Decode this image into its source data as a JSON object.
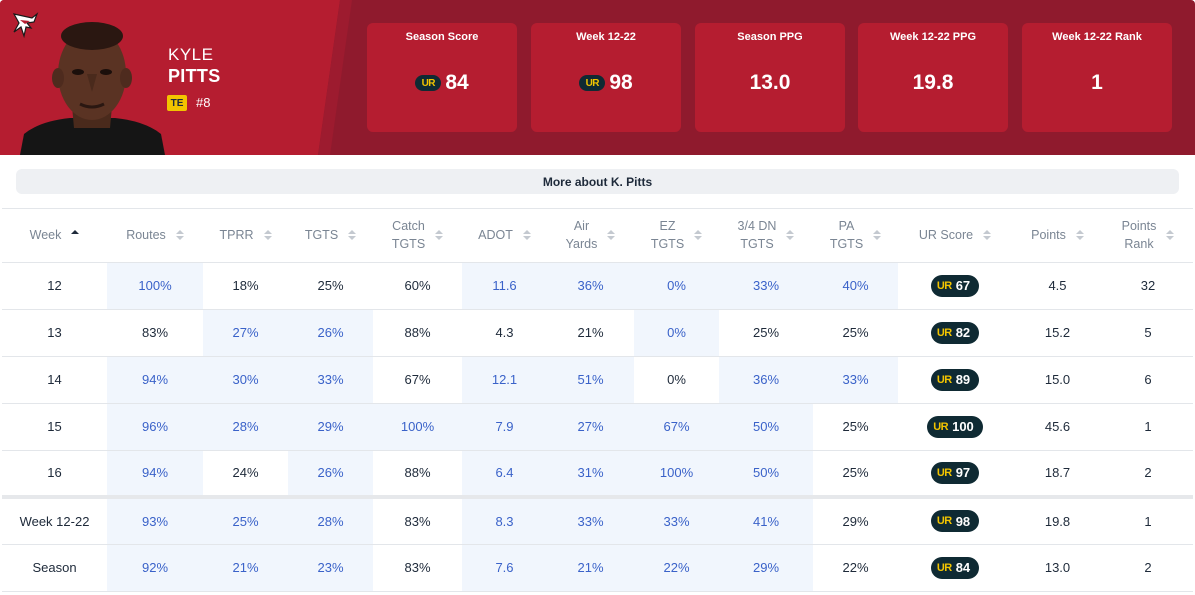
{
  "player": {
    "first_name": "KYLE",
    "last_name": "PITTS",
    "position": "TE",
    "jersey": "#8",
    "team_logo_icon": "falcons-logo-icon"
  },
  "colors": {
    "team_primary": "#b51d30",
    "team_dark": "#8f1a2d",
    "ur_chip_bg": "#0f2a33",
    "ur_chip_mark": "#f2c400",
    "highlight_cell_bg": "#f1f6fd",
    "highlight_cell_text": "#3a62c9"
  },
  "stats": [
    {
      "label": "Season Score",
      "value": "84",
      "ur_chip": "UR"
    },
    {
      "label": "Week 12-22",
      "value": "98",
      "ur_chip": "UR"
    },
    {
      "label": "Season PPG",
      "value": "13.0"
    },
    {
      "label": "Week 12-22 PPG",
      "value": "19.8"
    },
    {
      "label": "Week 12-22 Rank",
      "value": "1"
    }
  ],
  "more_about": "More about K. Pitts",
  "table": {
    "columns": [
      {
        "l1": "Week",
        "l2": ""
      },
      {
        "l1": "Routes",
        "l2": ""
      },
      {
        "l1": "TPRR",
        "l2": ""
      },
      {
        "l1": "TGTS",
        "l2": ""
      },
      {
        "l1": "Catch",
        "l2": "TGTS"
      },
      {
        "l1": "ADOT",
        "l2": ""
      },
      {
        "l1": "Air",
        "l2": "Yards"
      },
      {
        "l1": "EZ",
        "l2": "TGTS"
      },
      {
        "l1": "3/4 DN",
        "l2": "TGTS"
      },
      {
        "l1": "PA",
        "l2": "TGTS"
      },
      {
        "l1": "UR Score",
        "l2": ""
      },
      {
        "l1": "Points",
        "l2": ""
      },
      {
        "l1": "Points",
        "l2": "Rank"
      }
    ],
    "sorted_column": "Week",
    "ur_mark": "UR",
    "rows": [
      {
        "cells": [
          "12",
          "100%",
          "18%",
          "25%",
          "60%",
          "11.6",
          "36%",
          "0%",
          "33%",
          "40%",
          "67",
          "4.5",
          "32"
        ],
        "highlight": [
          1,
          5,
          6,
          7,
          8,
          9
        ]
      },
      {
        "cells": [
          "13",
          "83%",
          "27%",
          "26%",
          "88%",
          "4.3",
          "21%",
          "0%",
          "25%",
          "25%",
          "82",
          "15.2",
          "5"
        ],
        "highlight": [
          2,
          3,
          7
        ]
      },
      {
        "cells": [
          "14",
          "94%",
          "30%",
          "33%",
          "67%",
          "12.1",
          "51%",
          "0%",
          "36%",
          "33%",
          "89",
          "15.0",
          "6"
        ],
        "highlight": [
          1,
          2,
          3,
          5,
          6,
          8,
          9
        ]
      },
      {
        "cells": [
          "15",
          "96%",
          "28%",
          "29%",
          "100%",
          "7.9",
          "27%",
          "67%",
          "50%",
          "25%",
          "100",
          "45.6",
          "1"
        ],
        "highlight": [
          1,
          2,
          3,
          4,
          5,
          6,
          7,
          8
        ]
      },
      {
        "cells": [
          "16",
          "94%",
          "24%",
          "26%",
          "88%",
          "6.4",
          "31%",
          "100%",
          "50%",
          "25%",
          "97",
          "18.7",
          "2"
        ],
        "highlight": [
          1,
          3,
          5,
          6,
          7,
          8
        ]
      }
    ],
    "summary_rows": [
      {
        "cells": [
          "Week 12-22",
          "93%",
          "25%",
          "28%",
          "83%",
          "8.3",
          "33%",
          "33%",
          "41%",
          "29%",
          "98",
          "19.8",
          "1"
        ],
        "highlight": [
          1,
          2,
          3,
          5,
          6,
          7,
          8
        ]
      },
      {
        "cells": [
          "Season",
          "92%",
          "21%",
          "23%",
          "83%",
          "7.6",
          "21%",
          "22%",
          "29%",
          "22%",
          "84",
          "13.0",
          "2"
        ],
        "highlight": [
          1,
          2,
          3,
          5,
          6,
          7,
          8
        ]
      }
    ]
  }
}
